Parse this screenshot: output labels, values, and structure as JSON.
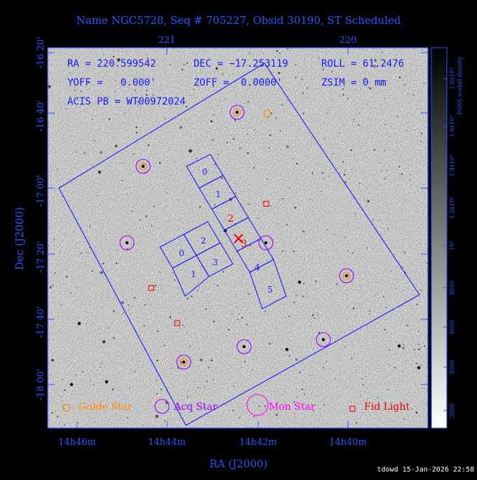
{
  "title": "Name NGC5728, Seq # 705227, Obsid 30190, ST Scheduled",
  "axes": {
    "xlabel": "RA (J2000)",
    "ylabel": "Dec (J2000)",
    "x_ticks_bottom": [
      "14h46m",
      "14h44m",
      "14h42m",
      "14h40m"
    ],
    "x_ticks_top": [
      "221",
      "220"
    ],
    "y_ticks": [
      "-16 20'",
      "-16 40'",
      "-17 00'",
      "-17 20'",
      "-17 40'",
      "-18 00'"
    ]
  },
  "info": {
    "ra": "RA = 220.599542",
    "dec": "DEC = −17.253119",
    "roll": "ROLL = 61.2476",
    "yoff": "YOFF =   0.000'",
    "zoff": "ZOFF =  0.0000'",
    "zsim": "ZSIM = 0 mm",
    "acis": "ACIS PB = WT00972024"
  },
  "colorbar": {
    "label": "POSS scaled density",
    "ticks": [
      "2000",
      "4000",
      "6000",
      "8000",
      "10⁴",
      "1.2x10⁴",
      "1.4x10⁴",
      "1.6x10⁴",
      "1.8x10⁴"
    ]
  },
  "chips": {
    "s_labels": [
      "0",
      "1",
      "2",
      "3",
      "4",
      "5"
    ],
    "i_labels": [
      "0",
      "1",
      "2",
      "3"
    ]
  },
  "legend": {
    "guide": "Guide Star",
    "acq": "Acq Star",
    "mon": "Mon Star",
    "fid": "Fid Light"
  },
  "footer": "tdowd 15-Jan-2026 22:58",
  "colors": {
    "fov_lines": "#1a1aff",
    "guide": "#ff8800",
    "acq": "#9900ff",
    "mon": "#ff00ff",
    "fid": "#ee0000",
    "aimpoint": "#ee0000"
  }
}
